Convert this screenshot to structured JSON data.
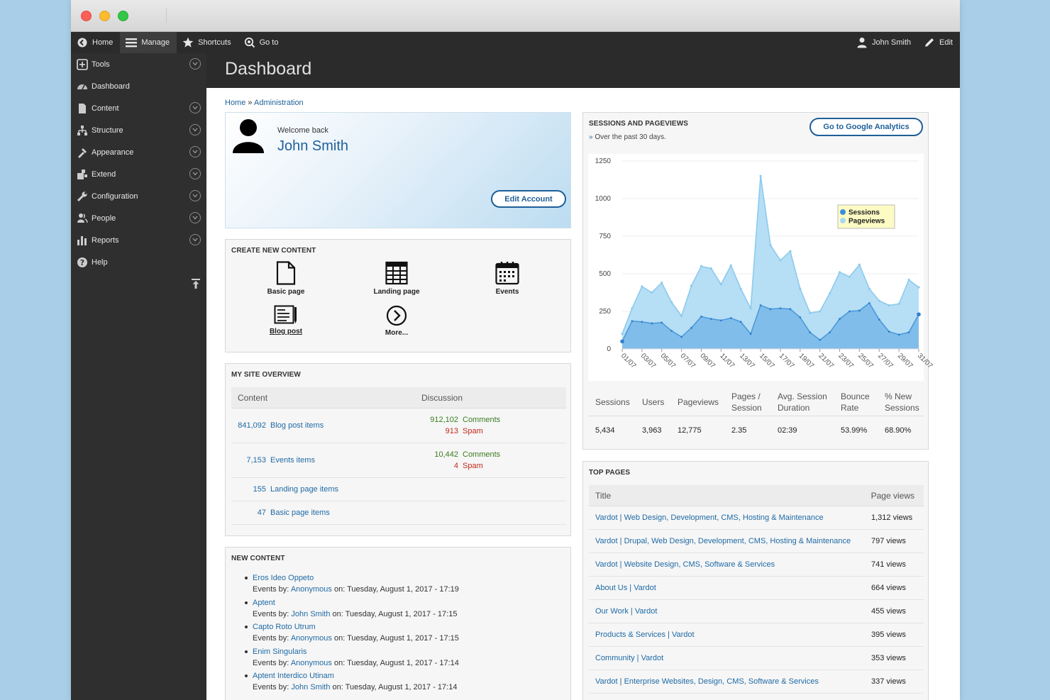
{
  "toolbar": {
    "home": "Home",
    "manage": "Manage",
    "shortcuts": "Shortcuts",
    "goto": "Go to",
    "user": "John Smith",
    "edit": "Edit"
  },
  "sidebar": {
    "items": [
      {
        "label": "Tools",
        "icon": "tools-icon",
        "expandable": true
      },
      {
        "label": "Dashboard",
        "icon": "dashboard-icon",
        "expandable": false
      },
      {
        "label": "Content",
        "icon": "content-icon",
        "expandable": true
      },
      {
        "label": "Structure",
        "icon": "structure-icon",
        "expandable": true
      },
      {
        "label": "Appearance",
        "icon": "appearance-icon",
        "expandable": true
      },
      {
        "label": "Extend",
        "icon": "extend-icon",
        "expandable": true
      },
      {
        "label": "Configuration",
        "icon": "configuration-icon",
        "expandable": true
      },
      {
        "label": "People",
        "icon": "people-icon",
        "expandable": true
      },
      {
        "label": "Reports",
        "icon": "reports-icon",
        "expandable": true
      },
      {
        "label": "Help",
        "icon": "help-icon",
        "expandable": false
      }
    ]
  },
  "header": {
    "title": "Dashboard"
  },
  "breadcrumb": {
    "home": "Home",
    "sep": "»",
    "current": "Administration"
  },
  "welcome": {
    "greeting": "Welcome back",
    "name": "John Smith",
    "edit_button": "Edit Account"
  },
  "create": {
    "title": "Create New Content",
    "items": [
      "Basic page",
      "Landing page",
      "Events",
      "Blog post",
      "More..."
    ]
  },
  "overview": {
    "title": "My Site Overview",
    "col_content": "Content",
    "col_discussion": "Discussion",
    "rows": [
      {
        "count": "841,092",
        "label": "Blog post items",
        "comments": "912,102",
        "comments_label": "Comments",
        "spam": "913",
        "spam_label": "Spam"
      },
      {
        "count": "7,153",
        "label": "Events items",
        "comments": "10,442",
        "comments_label": "Comments",
        "spam": "4",
        "spam_label": "Spam"
      },
      {
        "count": "155",
        "label": "Landing page items"
      },
      {
        "count": "47",
        "label": "Basic page items"
      }
    ]
  },
  "new_content": {
    "title": "New Content",
    "items": [
      {
        "title": "Eros Ideo Oppeto",
        "type": "Events by:",
        "author": "Anonymous",
        "on": "on: Tuesday, August 1, 2017 - 17:19"
      },
      {
        "title": "Aptent",
        "type": "Events by:",
        "author": "John Smith",
        "on": "on: Tuesday, August 1, 2017 - 17:15"
      },
      {
        "title": "Capto Roto Utrum",
        "type": "Events by:",
        "author": "Anonymous",
        "on": "on: Tuesday, August 1, 2017 - 17:15"
      },
      {
        "title": "Enim Singularis",
        "type": "Events by:",
        "author": "Anonymous",
        "on": "on: Tuesday, August 1, 2017 - 17:14"
      },
      {
        "title": "Aptent Interdico Utinam",
        "type": "Events by:",
        "author": "John Smith",
        "on": "on: Tuesday, August 1, 2017 - 17:14"
      }
    ]
  },
  "sessions": {
    "title": "Sessions and Pageviews",
    "subtitle_mark": "»",
    "subtitle": "Over the past 30 days.",
    "ga_button": "Go to Google Analytics",
    "stats_headers": [
      [
        "Sessions"
      ],
      [
        "Users"
      ],
      [
        "Pageviews"
      ],
      [
        "Pages /",
        "Session"
      ],
      [
        "Avg. Session",
        "Duration"
      ],
      [
        "Bounce",
        "Rate"
      ],
      [
        "% New",
        "Sessions"
      ]
    ],
    "stats_values": [
      "5,434",
      "3,963",
      "12,775",
      "2.35",
      "02:39",
      "53.99%",
      "68.90%"
    ]
  },
  "chart_data": {
    "type": "area",
    "x": [
      "01/07",
      "02/07",
      "03/07",
      "04/07",
      "05/07",
      "06/07",
      "07/07",
      "08/07",
      "09/07",
      "10/07",
      "11/07",
      "12/07",
      "13/07",
      "14/07",
      "15/07",
      "16/07",
      "17/07",
      "18/07",
      "19/07",
      "20/07",
      "21/07",
      "22/07",
      "23/07",
      "24/07",
      "25/07",
      "26/07",
      "27/07",
      "28/07",
      "29/07",
      "30/07",
      "31/07"
    ],
    "x_tick_labels": [
      "01/07",
      "03/07",
      "05/07",
      "07/07",
      "09/07",
      "11/07",
      "13/07",
      "15/07",
      "17/07",
      "19/07",
      "21/07",
      "23/07",
      "25/07",
      "27/07",
      "29/07",
      "31/07"
    ],
    "series": [
      {
        "name": "Sessions",
        "color": "#3b8fd6",
        "values": [
          50,
          185,
          180,
          170,
          175,
          120,
          80,
          140,
          215,
          200,
          190,
          205,
          180,
          100,
          290,
          265,
          270,
          265,
          210,
          110,
          60,
          110,
          200,
          250,
          255,
          305,
          195,
          115,
          95,
          110,
          230
        ]
      },
      {
        "name": "Pageviews",
        "color": "#a9d8f3",
        "values": [
          100,
          270,
          415,
          375,
          440,
          310,
          220,
          420,
          550,
          535,
          430,
          555,
          400,
          270,
          1150,
          690,
          590,
          650,
          400,
          240,
          250,
          370,
          510,
          480,
          560,
          400,
          320,
          290,
          300,
          460,
          410
        ]
      }
    ],
    "ylim": [
      0,
      1250
    ],
    "yticks": [
      0,
      250,
      500,
      750,
      1000,
      1250
    ],
    "legend": "top-right"
  },
  "top_pages": {
    "title": "Top Pages",
    "col_title": "Title",
    "col_views": "Page views",
    "rows": [
      {
        "title": "Vardot | Web Design, Development, CMS, Hosting & Maintenance",
        "views": "1,312 views"
      },
      {
        "title": "Vardot | Drupal, Web Design, Development, CMS, Hosting & Maintenance",
        "views": "797 views"
      },
      {
        "title": "Vardot | Website Design, CMS, Software & Services",
        "views": "741 views"
      },
      {
        "title": "About Us | Vardot",
        "views": "664 views"
      },
      {
        "title": "Our Work | Vardot",
        "views": "455 views"
      },
      {
        "title": "Products & Services | Vardot",
        "views": "395 views"
      },
      {
        "title": "Community | Vardot",
        "views": "353 views"
      },
      {
        "title": "Vardot | Enterprise Websites, Design, CMS, Software & Services",
        "views": "337 views"
      }
    ]
  }
}
